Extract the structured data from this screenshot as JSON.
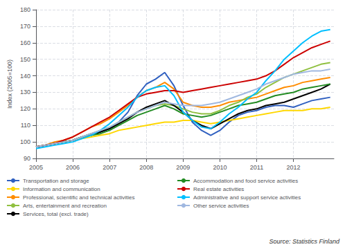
{
  "chart_data": {
    "type": "line",
    "ylabel": "Index (2005=100)",
    "annotations": [
      "Source: Statistics Finland"
    ],
    "xlim": [
      2005,
      2013.1
    ],
    "xticks": [
      2005,
      2006,
      2007,
      2008,
      2009,
      2010,
      2011,
      2012
    ],
    "ylim": [
      90,
      180
    ],
    "yticks": [
      90,
      100,
      110,
      120,
      130,
      140,
      150,
      160,
      170,
      180
    ],
    "grid": true,
    "legend": "bottom",
    "x": [
      2005.0,
      2005.25,
      2005.5,
      2005.75,
      2006.0,
      2006.25,
      2006.5,
      2006.75,
      2007.0,
      2007.25,
      2007.5,
      2007.75,
      2008.0,
      2008.25,
      2008.5,
      2008.75,
      2009.0,
      2009.25,
      2009.5,
      2009.75,
      2010.0,
      2010.25,
      2010.5,
      2010.75,
      2011.0,
      2011.25,
      2011.5,
      2011.75,
      2012.0,
      2012.25,
      2012.5,
      2012.75,
      2013.0
    ],
    "series": [
      {
        "name": "Transportation and storage",
        "color": "#3060c0",
        "values": [
          97,
          98,
          99,
          100,
          101,
          103,
          105,
          106,
          108,
          112,
          118,
          128,
          135,
          138,
          142,
          134,
          122,
          112,
          107,
          104,
          107,
          112,
          116,
          118,
          119,
          121,
          122,
          122,
          121,
          123,
          125,
          126,
          127
        ]
      },
      {
        "name": "Information and communication",
        "color": "#ffd700",
        "values": [
          97,
          98,
          99,
          100,
          101,
          102,
          103,
          104,
          105,
          107,
          108,
          109,
          110,
          111,
          112,
          112,
          113,
          113,
          112,
          111,
          112,
          113,
          114,
          115,
          116,
          117,
          118,
          119,
          119,
          119,
          120,
          120,
          121
        ]
      },
      {
        "name": "Professional, scientific and technical activities",
        "color": "#ff8c00",
        "values": [
          97,
          98,
          100,
          101,
          103,
          106,
          109,
          111,
          114,
          118,
          122,
          127,
          131,
          133,
          136,
          132,
          124,
          122,
          121,
          121,
          122,
          124,
          125,
          126,
          127,
          129,
          131,
          133,
          134,
          136,
          137,
          138,
          139
        ]
      },
      {
        "name": "Arts, entertainment and recreation",
        "color": "#90c040",
        "values": [
          97,
          98,
          99,
          100,
          101,
          103,
          105,
          107,
          109,
          112,
          115,
          118,
          120,
          122,
          123,
          122,
          120,
          118,
          117,
          117,
          119,
          122,
          124,
          127,
          129,
          133,
          136,
          139,
          141,
          143,
          145,
          147,
          148
        ]
      },
      {
        "name": "Services, total (excl. trade)",
        "color": "#000000",
        "values": [
          97,
          98,
          99,
          100,
          101,
          103,
          104,
          106,
          108,
          111,
          114,
          118,
          121,
          123,
          125,
          122,
          118,
          113,
          110,
          108,
          111,
          114,
          117,
          119,
          120,
          122,
          123,
          124,
          126,
          128,
          130,
          132,
          135
        ]
      },
      {
        "name": "Accommodation and food service activities",
        "color": "#228b22",
        "values": [
          97,
          98,
          99,
          100,
          101,
          103,
          104,
          105,
          107,
          110,
          113,
          116,
          118,
          120,
          122,
          120,
          117,
          116,
          115,
          116,
          118,
          120,
          122,
          123,
          124,
          126,
          128,
          129,
          130,
          132,
          133,
          134,
          135
        ]
      },
      {
        "name": "Real estate activities",
        "color": "#cc0000",
        "values": [
          97,
          98,
          99,
          101,
          103,
          106,
          109,
          112,
          115,
          119,
          123,
          127,
          129,
          130,
          131,
          131,
          130,
          131,
          132,
          133,
          134,
          135,
          136,
          137,
          138,
          140,
          143,
          147,
          151,
          154,
          157,
          159,
          161
        ]
      },
      {
        "name": "Administrative and support service activities",
        "color": "#00bfff",
        "values": [
          96,
          97,
          98,
          99,
          100,
          102,
          104,
          107,
          111,
          116,
          121,
          127,
          131,
          133,
          134,
          128,
          118,
          113,
          109,
          108,
          112,
          117,
          121,
          126,
          130,
          137,
          143,
          150,
          155,
          160,
          164,
          167,
          168
        ]
      },
      {
        "name": "Other service activities",
        "color": "#a0b8e0",
        "values": [
          97,
          98,
          99,
          100,
          101,
          103,
          105,
          107,
          109,
          112,
          115,
          118,
          120,
          122,
          124,
          123,
          122,
          122,
          122,
          123,
          124,
          126,
          128,
          130,
          132,
          135,
          137,
          139,
          141,
          142,
          143,
          143,
          144
        ]
      }
    ]
  }
}
